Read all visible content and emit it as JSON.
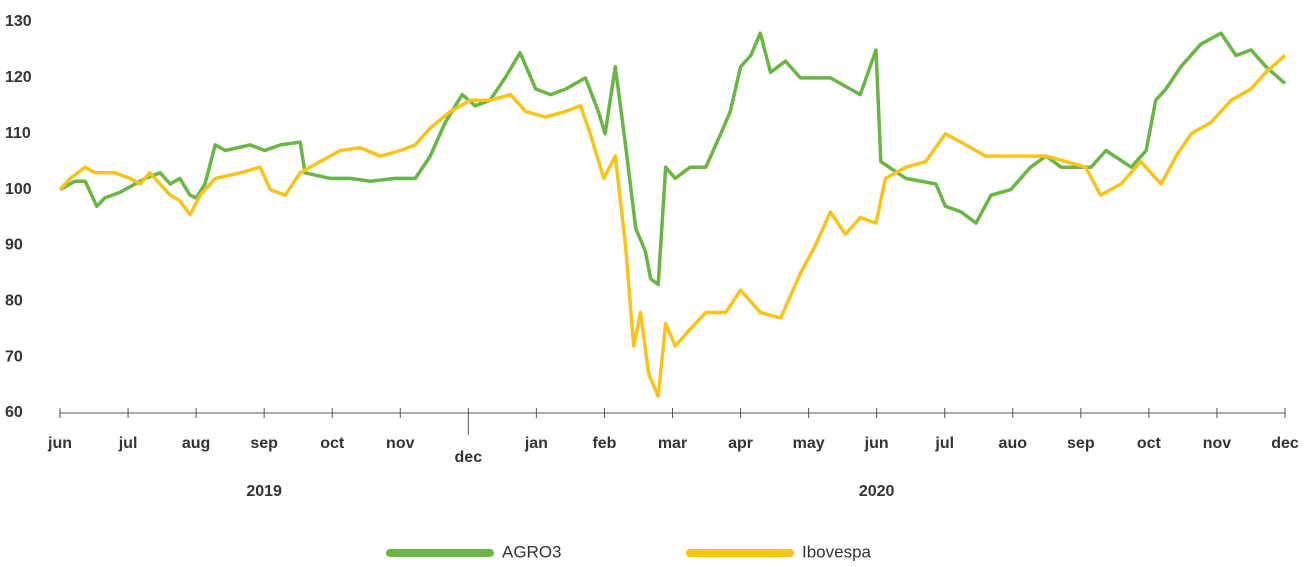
{
  "chart_data": {
    "type": "line",
    "xlim": [
      0,
      18
    ],
    "xticks": [
      {
        "value": 0,
        "label": "jun"
      },
      {
        "value": 1,
        "label": "jul"
      },
      {
        "value": 2,
        "label": "aug"
      },
      {
        "value": 3,
        "label": "sep"
      },
      {
        "value": 4,
        "label": "oct"
      },
      {
        "value": 5,
        "label": "nov"
      },
      {
        "value": 6,
        "label": "dec"
      },
      {
        "value": 7,
        "label": "jan"
      },
      {
        "value": 8,
        "label": "feb"
      },
      {
        "value": 9,
        "label": "mar"
      },
      {
        "value": 10,
        "label": "apr"
      },
      {
        "value": 11,
        "label": "may"
      },
      {
        "value": 12,
        "label": "jun"
      },
      {
        "value": 13,
        "label": "jul"
      },
      {
        "value": 14,
        "label": "auo"
      },
      {
        "value": 15,
        "label": "sep"
      },
      {
        "value": 16,
        "label": "oct"
      },
      {
        "value": 17,
        "label": "nov"
      },
      {
        "value": 18,
        "label": "dec"
      }
    ],
    "ylim": [
      60,
      130
    ],
    "yticks": [
      60,
      70,
      80,
      90,
      100,
      110,
      120,
      130
    ],
    "annotations": [
      "2019",
      "2020"
    ],
    "legend": "bottom",
    "series": [
      {
        "name": "AGRO3",
        "color": "#6ab545",
        "x": [
          0,
          0.22,
          0.37,
          0.54,
          0.66,
          0.88,
          1.25,
          1.47,
          1.62,
          1.76,
          1.91,
          2.0,
          2.13,
          2.28,
          2.43,
          2.79,
          3.01,
          3.24,
          3.53,
          3.6,
          3.97,
          4.26,
          4.56,
          4.93,
          5.22,
          5.44,
          5.66,
          5.91,
          6.1,
          6.32,
          6.54,
          6.76,
          6.99,
          7.21,
          7.43,
          7.72,
          7.91,
          8.01,
          8.16,
          8.31,
          8.46,
          8.6,
          8.68,
          8.79,
          8.9,
          9.04,
          9.26,
          9.49,
          9.71,
          9.85,
          10.0,
          10.15,
          10.29,
          10.44,
          10.66,
          10.88,
          11.32,
          11.76,
          11.99,
          12.06,
          12.43,
          12.87,
          13.01,
          13.24,
          13.46,
          13.68,
          13.97,
          14.26,
          14.49,
          14.71,
          15.15,
          15.37,
          15.74,
          15.96,
          16.1,
          16.25,
          16.47,
          16.76,
          17.06,
          17.28,
          17.5,
          17.72,
          18.0
        ],
        "values": [
          100,
          101.5,
          101.5,
          97,
          98.5,
          99.5,
          102,
          103,
          101,
          102,
          99,
          98.5,
          101,
          108,
          107,
          108,
          107,
          108,
          108.5,
          103,
          102,
          102,
          101.5,
          102,
          102,
          106,
          112,
          117,
          115,
          116,
          120,
          124.5,
          118,
          117,
          118,
          120,
          114,
          110,
          122,
          108,
          93,
          89,
          84,
          83,
          104,
          102,
          104,
          104,
          110,
          114,
          122,
          124,
          128,
          121,
          123,
          120,
          120,
          117,
          125,
          105,
          102,
          101,
          97,
          96,
          94,
          99,
          100,
          104,
          106,
          104,
          104,
          107,
          104,
          107,
          116,
          118,
          122,
          126,
          128,
          124,
          125,
          122,
          119
        ]
      },
      {
        "name": "Ibovespa",
        "color": "#f8c31a",
        "x": [
          0,
          0.15,
          0.37,
          0.51,
          0.81,
          1.03,
          1.18,
          1.32,
          1.47,
          1.62,
          1.76,
          1.91,
          2.06,
          2.28,
          2.65,
          2.94,
          3.09,
          3.31,
          3.53,
          3.82,
          4.12,
          4.41,
          4.71,
          5.0,
          5.22,
          5.44,
          5.74,
          6.03,
          6.32,
          6.62,
          6.84,
          7.13,
          7.43,
          7.65,
          7.79,
          7.99,
          8.16,
          8.31,
          8.43,
          8.53,
          8.65,
          8.79,
          8.9,
          9.04,
          9.26,
          9.49,
          9.78,
          10.0,
          10.29,
          10.59,
          10.88,
          11.1,
          11.32,
          11.54,
          11.76,
          11.99,
          12.13,
          12.43,
          12.72,
          13.01,
          13.31,
          13.6,
          13.9,
          14.19,
          14.49,
          14.78,
          15.07,
          15.29,
          15.59,
          15.88,
          16.18,
          16.4,
          16.62,
          16.91,
          17.21,
          17.5,
          17.72,
          18.0
        ],
        "values": [
          100,
          102,
          104,
          103,
          103,
          102,
          101,
          103,
          101,
          99,
          98,
          95.5,
          99,
          102,
          103,
          104,
          100,
          99,
          103,
          105,
          107,
          107.5,
          106,
          107,
          108,
          111,
          114,
          116,
          116,
          117,
          114,
          113,
          114,
          115,
          110,
          102,
          106,
          90,
          72,
          78,
          67,
          63,
          76,
          72,
          75,
          78,
          78,
          82,
          78,
          77,
          85,
          90,
          96,
          92,
          95,
          94,
          102,
          104,
          105,
          110,
          108,
          106,
          106,
          106,
          106,
          105,
          104,
          99,
          101,
          105,
          101,
          106,
          110,
          112,
          116,
          118,
          121,
          124
        ]
      }
    ]
  }
}
